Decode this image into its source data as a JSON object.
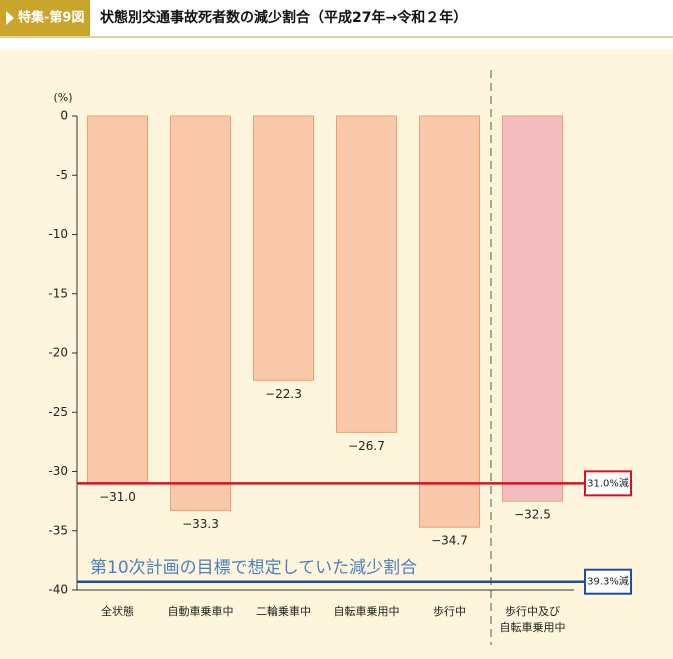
{
  "chart_data": {
    "type": "bar",
    "figure_label": "特集-第9図",
    "title": "状態別交通事故死者数の減少割合（平成27年→令和２年）",
    "y_unit": "(%)",
    "categories": [
      "全状態",
      "自動車乗車中",
      "二輪乗車中",
      "自転車乗用中",
      "歩行中",
      "歩行中及び\n自転車乗用中"
    ],
    "values": [
      -31.0,
      -33.3,
      -22.3,
      -26.7,
      -34.7,
      -32.5
    ],
    "value_labels": [
      "−31.0",
      "−33.3",
      "−22.3",
      "−26.7",
      "−34.7",
      "−32.5"
    ],
    "colors": [
      "#f9c7aa",
      "#f9c7aa",
      "#f9c7aa",
      "#f9c7aa",
      "#f9c7aa",
      "#f5bcc0"
    ],
    "ylim": [
      -40,
      0
    ],
    "yticks": [
      0,
      -5,
      -10,
      -15,
      -20,
      -25,
      -30,
      -35,
      -40
    ],
    "reference_lines": [
      {
        "value": -31.0,
        "label": "31.0%減",
        "color": "#d7102a"
      },
      {
        "value": -39.3,
        "label": "39.3%減",
        "color": "#1d4f9c"
      }
    ],
    "annotation": "第10次計画の目標で想定していた減少割合"
  }
}
